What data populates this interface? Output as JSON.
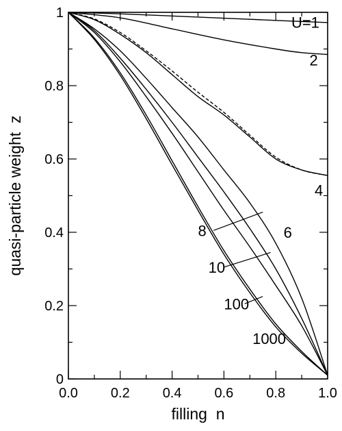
{
  "chart_data": {
    "type": "line",
    "title": "",
    "xlabel": "filling  n",
    "ylabel": "quasi-particle weight  z",
    "xlim": [
      0.0,
      1.0
    ],
    "ylim": [
      0.0,
      1.0
    ],
    "xticks": [
      0.0,
      0.2,
      0.4,
      0.6,
      0.8,
      1.0
    ],
    "xtick_labels": [
      "0.0",
      "0.2",
      "0.4",
      "0.6",
      "0.8",
      "1.0"
    ],
    "yticks": [
      0,
      0.2,
      0.4,
      0.6,
      0.8,
      1
    ],
    "ytick_labels": [
      "0",
      "0.2",
      "0.4",
      "0.6",
      "0.8",
      "1"
    ],
    "grid": false,
    "legend": "none",
    "series": [
      {
        "label": "U=1",
        "label_at": [
          0.86,
          0.958
        ],
        "x": [
          0,
          0.2,
          0.4,
          0.6,
          0.8,
          0.9,
          1.0
        ],
        "y": [
          1.0,
          0.996,
          0.99,
          0.984,
          0.978,
          0.975,
          0.972
        ]
      },
      {
        "label": "2",
        "label_at": [
          0.93,
          0.855
        ],
        "x": [
          0,
          0.2,
          0.4,
          0.6,
          0.8,
          0.9,
          1.0
        ],
        "y": [
          1.0,
          0.985,
          0.955,
          0.925,
          0.9,
          0.89,
          0.885
        ]
      },
      {
        "label": "4",
        "label_at": [
          0.95,
          0.5
        ],
        "x": [
          0,
          0.1,
          0.2,
          0.3,
          0.4,
          0.5,
          0.6,
          0.7,
          0.8,
          0.9,
          1.0
        ],
        "y": [
          1.0,
          0.98,
          0.94,
          0.89,
          0.83,
          0.77,
          0.72,
          0.66,
          0.6,
          0.57,
          0.555
        ]
      },
      {
        "label": "",
        "style": "dashed",
        "x": [
          0,
          0.1,
          0.2,
          0.3,
          0.4,
          0.5,
          0.6,
          0.7,
          0.8,
          0.9,
          1.0
        ],
        "y": [
          1.0,
          0.982,
          0.945,
          0.895,
          0.84,
          0.782,
          0.727,
          0.665,
          0.605,
          0.57,
          0.555
        ]
      },
      {
        "label": "6",
        "label_at": [
          0.83,
          0.385
        ],
        "x": [
          0,
          0.1,
          0.2,
          0.3,
          0.4,
          0.5,
          0.6,
          0.7,
          0.8,
          0.9,
          1.0
        ],
        "y": [
          1.0,
          0.955,
          0.895,
          0.82,
          0.74,
          0.66,
          0.57,
          0.48,
          0.37,
          0.22,
          0.01
        ]
      },
      {
        "label": "8",
        "label_at": [
          0.5,
          0.39
        ],
        "leader": [
          [
            0.56,
            0.405
          ],
          [
            0.75,
            0.455
          ]
        ],
        "x": [
          0,
          0.1,
          0.2,
          0.3,
          0.4,
          0.5,
          0.6,
          0.7,
          0.8,
          0.9,
          1.0
        ],
        "y": [
          1.0,
          0.95,
          0.875,
          0.79,
          0.7,
          0.605,
          0.51,
          0.41,
          0.3,
          0.165,
          0.01
        ]
      },
      {
        "label": "10",
        "label_at": [
          0.54,
          0.29
        ],
        "leader": [
          [
            0.6,
            0.305
          ],
          [
            0.78,
            0.345
          ]
        ],
        "x": [
          0,
          0.1,
          0.2,
          0.3,
          0.4,
          0.5,
          0.6,
          0.7,
          0.8,
          0.9,
          1.0
        ],
        "y": [
          1.0,
          0.945,
          0.865,
          0.77,
          0.67,
          0.565,
          0.46,
          0.36,
          0.255,
          0.145,
          0.01
        ]
      },
      {
        "label": "100",
        "label_at": [
          0.6,
          0.19
        ],
        "leader": [
          [
            0.68,
            0.205
          ],
          [
            0.75,
            0.225
          ]
        ],
        "x": [
          0,
          0.1,
          0.2,
          0.3,
          0.4,
          0.5,
          0.6,
          0.7,
          0.8,
          0.9,
          1.0
        ],
        "y": [
          1.0,
          0.93,
          0.835,
          0.72,
          0.595,
          0.47,
          0.35,
          0.245,
          0.15,
          0.075,
          0.01
        ]
      },
      {
        "label": "1000",
        "label_at": [
          0.71,
          0.095
        ],
        "x": [
          0,
          0.1,
          0.2,
          0.3,
          0.4,
          0.5,
          0.6,
          0.7,
          0.8,
          0.9,
          1.0
        ],
        "y": [
          1.0,
          0.926,
          0.828,
          0.71,
          0.584,
          0.46,
          0.34,
          0.235,
          0.142,
          0.07,
          0.01
        ]
      }
    ]
  }
}
